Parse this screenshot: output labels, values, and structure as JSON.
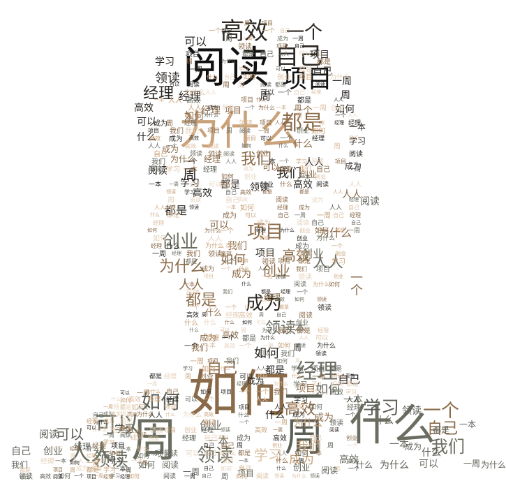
{
  "palette": {
    "black": "#111111",
    "dark": "#2a2622",
    "gray": "#5b5f55",
    "olive": "#6a6d60",
    "brown": "#8a6a48",
    "tan": "#c9a27a",
    "light": "#dcbfa0",
    "pale": "#e6d2bd"
  },
  "words": [
    "阅读",
    "项目",
    "自己",
    "高效",
    "一个",
    "经理",
    "为什么",
    "都是",
    "我们",
    "可以",
    "如何",
    "一周",
    "什么",
    "人人",
    "成为",
    "创业",
    "领读",
    "学习",
    "一本",
    "周"
  ]
}
